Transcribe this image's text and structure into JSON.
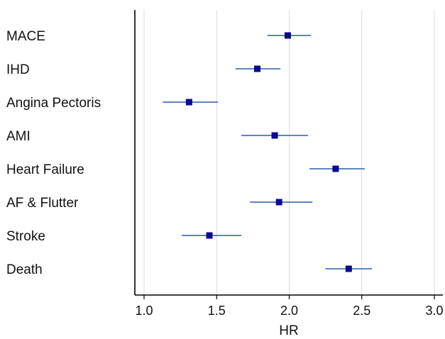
{
  "chart_data": {
    "type": "forest",
    "title": "",
    "xlabel": "HR",
    "ylabel": "",
    "xlim": [
      0.95,
      3.05
    ],
    "x_ticks": [
      "1.0",
      "1.5",
      "2.0",
      "2.5",
      "3.0"
    ],
    "grid": "vertical",
    "colors": {
      "marker": "#0a0a8f",
      "ci_line": "#2a5cab",
      "grid": "#dcdcdc",
      "axis": "#000000"
    },
    "rows": [
      {
        "label": "MACE",
        "hr": 1.99,
        "lower": 1.85,
        "upper": 2.15
      },
      {
        "label": "IHD",
        "hr": 1.78,
        "lower": 1.63,
        "upper": 1.94
      },
      {
        "label": "Angina Pectoris",
        "hr": 1.31,
        "lower": 1.13,
        "upper": 1.51
      },
      {
        "label": "AMI",
        "hr": 1.9,
        "lower": 1.67,
        "upper": 2.13
      },
      {
        "label": "Heart Failure",
        "hr": 2.32,
        "lower": 2.14,
        "upper": 2.52
      },
      {
        "label": "AF & Flutter",
        "hr": 1.93,
        "lower": 1.73,
        "upper": 2.16
      },
      {
        "label": "Stroke",
        "hr": 1.45,
        "lower": 1.26,
        "upper": 1.67
      },
      {
        "label": "Death",
        "hr": 2.41,
        "lower": 2.25,
        "upper": 2.57
      }
    ]
  }
}
